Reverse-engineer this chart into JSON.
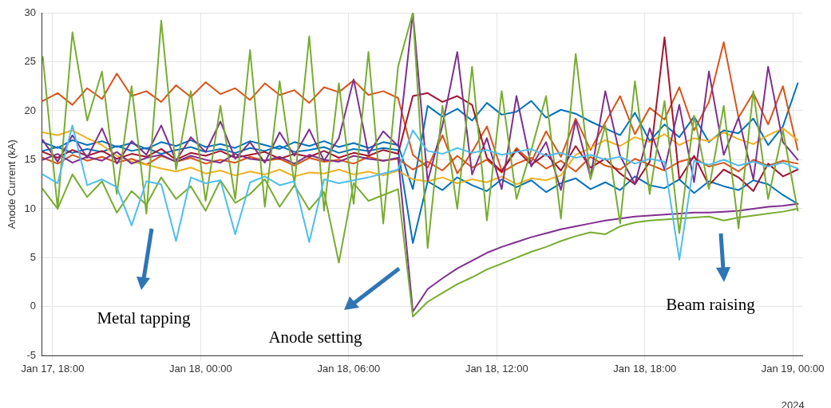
{
  "chart_data": {
    "type": "line",
    "ylabel": "Anode Current (kA)",
    "x": [
      "2024-01-17T17:36",
      "2024-01-17T18:12",
      "2024-01-17T18:48",
      "2024-01-17T19:24",
      "2024-01-17T20:00",
      "2024-01-17T20:36",
      "2024-01-17T21:12",
      "2024-01-17T21:48",
      "2024-01-17T22:24",
      "2024-01-17T23:00",
      "2024-01-17T23:36",
      "2024-01-18T00:12",
      "2024-01-18T00:48",
      "2024-01-18T01:24",
      "2024-01-18T02:00",
      "2024-01-18T02:36",
      "2024-01-18T03:12",
      "2024-01-18T03:48",
      "2024-01-18T04:24",
      "2024-01-18T05:00",
      "2024-01-18T05:36",
      "2024-01-18T06:12",
      "2024-01-18T06:48",
      "2024-01-18T07:24",
      "2024-01-18T08:00",
      "2024-01-18T08:36",
      "2024-01-18T09:12",
      "2024-01-18T09:48",
      "2024-01-18T10:24",
      "2024-01-18T11:00",
      "2024-01-18T11:36",
      "2024-01-18T12:12",
      "2024-01-18T12:48",
      "2024-01-18T13:24",
      "2024-01-18T14:00",
      "2024-01-18T14:36",
      "2024-01-18T15:12",
      "2024-01-18T15:48",
      "2024-01-18T16:24",
      "2024-01-18T17:00",
      "2024-01-18T17:36",
      "2024-01-18T18:12",
      "2024-01-18T18:48",
      "2024-01-18T19:24",
      "2024-01-18T20:00",
      "2024-01-18T20:36",
      "2024-01-18T21:12",
      "2024-01-18T21:48",
      "2024-01-18T22:24",
      "2024-01-18T23:00",
      "2024-01-18T23:36",
      "2024-01-19T00:12"
    ],
    "xlim": [
      "2024-01-17T17:33",
      "2024-01-19T00:23"
    ],
    "xticks": [
      {
        "value": "2024-01-17T18:00",
        "label": "Jan 17, 18:00"
      },
      {
        "value": "2024-01-18T00:00",
        "label": "Jan 18, 00:00"
      },
      {
        "value": "2024-01-18T06:00",
        "label": "Jan 18, 06:00"
      },
      {
        "value": "2024-01-18T12:00",
        "label": "Jan 18, 12:00"
      },
      {
        "value": "2024-01-18T18:00",
        "label": "Jan 18, 18:00"
      },
      {
        "value": "2024-01-19T00:00",
        "label": "Jan 19, 00:00"
      }
    ],
    "ylim": [
      -5,
      30
    ],
    "yticks": [
      -5,
      0,
      5,
      10,
      15,
      20,
      25,
      30
    ],
    "grid": true,
    "legend": false,
    "marker": "none",
    "line_style": "solid",
    "annotations": [
      "Metal tapping",
      "Anode setting",
      "Beam raising",
      "2024"
    ],
    "series": [
      {
        "color": "#0072bd",
        "values": [
          16.8,
          16.2,
          17.0,
          16.5,
          16.9,
          16.3,
          16.7,
          16.1,
          16.8,
          16.4,
          17.0,
          16.3,
          16.6,
          16.2,
          16.9,
          16.5,
          16.1,
          16.8,
          16.4,
          16.9,
          16.3,
          16.7,
          16.2,
          16.8,
          16.5,
          12,
          20.5,
          19.4,
          20.2,
          19.0,
          20.8,
          19.6,
          19.9,
          21.0,
          19.3,
          20.1,
          19.7,
          18.9,
          18.2,
          17.5,
          19.8,
          16.9,
          18.6,
          17.3,
          19.4,
          16.8,
          18.0,
          17.7,
          19.2,
          16.5,
          18.4,
          22.8
        ]
      },
      {
        "color": "#0072bd",
        "values": [
          15.9,
          16.3,
          15.7,
          16.1,
          15.8,
          16.4,
          15.9,
          16.2,
          15.6,
          16.0,
          16.3,
          15.8,
          16.1,
          15.7,
          16.2,
          15.9,
          16.4,
          15.8,
          16.0,
          16.3,
          15.7,
          16.1,
          15.9,
          16.2,
          16.0,
          6.5,
          12.8,
          11.9,
          13.2,
          12.4,
          11.8,
          13.0,
          12.2,
          12.9,
          11.7,
          12.6,
          13.1,
          12.0,
          12.7,
          11.9,
          13.3,
          12.4,
          12.1,
          13.0,
          11.6,
          12.8,
          12.3,
          11.9,
          12.9,
          12.5,
          11.4,
          10.5
        ]
      },
      {
        "color": "#d95319",
        "values": [
          21.0,
          21.8,
          20.6,
          22.3,
          21.2,
          23.8,
          21.5,
          22.0,
          20.9,
          22.6,
          21.4,
          22.9,
          21.7,
          22.3,
          21.1,
          22.8,
          21.6,
          22.1,
          20.8,
          22.4,
          21.9,
          23.1,
          21.6,
          22.0,
          21.3,
          15.5,
          14.2,
          17.5,
          13.6,
          15.8,
          18.4,
          13.9,
          16.2,
          14.8,
          17.9,
          15.3,
          19.2,
          16.0,
          18.8,
          21.5,
          17.6,
          20.3,
          19.1,
          22.4,
          18.0,
          20.9,
          27.0,
          19.3,
          21.8,
          18.6,
          22.5,
          16.0
        ]
      },
      {
        "color": "#d95319",
        "values": [
          15.2,
          14.6,
          15.5,
          14.9,
          15.3,
          14.7,
          15.1,
          14.5,
          15.4,
          14.8,
          15.2,
          14.6,
          15.0,
          14.7,
          15.3,
          14.9,
          15.1,
          14.4,
          15.2,
          14.8,
          15.0,
          14.6,
          15.3,
          14.9,
          15.1,
          14.0,
          14.8,
          13.9,
          15.4,
          14.2,
          15.0,
          13.7,
          14.6,
          15.2,
          14.1,
          14.9,
          13.8,
          15.3,
          14.4,
          14.0,
          15.1,
          14.5,
          13.9,
          14.8,
          15.2,
          14.3,
          14.7,
          13.8,
          15.0,
          14.4,
          14.9,
          14.6
        ]
      },
      {
        "color": "#edb120",
        "values": [
          17.8,
          17.5,
          18.0,
          17.2,
          16.5,
          15.4,
          14.8,
          14.5,
          14.1,
          13.8,
          14.2,
          13.6,
          13.9,
          13.4,
          13.8,
          13.5,
          14.0,
          13.3,
          13.7,
          13.6,
          14.0,
          13.5,
          13.8,
          13.4,
          13.9,
          13.0,
          12.8,
          13.2,
          12.6,
          13.0,
          12.7,
          13.3,
          12.5,
          13.1,
          12.9,
          13.4,
          15.5,
          16.2,
          17.0,
          16.4,
          17.3,
          16.8,
          17.6,
          16.5,
          17.2,
          16.9,
          17.8,
          17.1,
          16.6,
          17.5,
          18.2,
          17.0
        ]
      },
      {
        "color": "#a2142f",
        "values": [
          15.8,
          15.2,
          16.0,
          15.4,
          15.9,
          15.1,
          15.6,
          15.3,
          16.1,
          15.0,
          15.7,
          15.4,
          15.9,
          15.2,
          15.5,
          15.8,
          15.1,
          15.6,
          15.3,
          15.9,
          15.2,
          15.7,
          15.4,
          16.0,
          15.6,
          21.5,
          21.8,
          20.9,
          21.5,
          20.6,
          15.2,
          13.8,
          16.0,
          14.5,
          15.6,
          13.9,
          16.4,
          14.2,
          15.1,
          13.6,
          12.5,
          14.8,
          27.5,
          13.0,
          15.4,
          12.4,
          14.0,
          13.2,
          11.8,
          14.6,
          13.3,
          14.0
        ]
      },
      {
        "color": "#7e2f8e",
        "values": [
          17.0,
          14.8,
          17.5,
          15.2,
          18.2,
          14.6,
          16.9,
          15.5,
          18.5,
          14.9,
          17.3,
          15.8,
          18.9,
          15.1,
          16.8,
          14.7,
          17.8,
          15.4,
          18.1,
          14.9,
          17.2,
          23.2,
          15.6,
          17.9,
          16.4,
          30,
          12.8,
          18.5,
          26.0,
          13.5,
          17.2,
          12.0,
          21.5,
          14.3,
          16.8,
          11.9,
          19.0,
          13.2,
          22.0,
          15.4,
          12.5,
          18.2,
          14.0,
          20.6,
          12.7,
          24.0,
          15.5,
          19.3,
          13.0,
          24.5,
          16.8,
          15.0
        ]
      },
      {
        "color": "#7e2f8e",
        "values": [
          15.0,
          15.6,
          14.7,
          15.3,
          14.9,
          15.8,
          14.6,
          15.2,
          15.5,
          14.8,
          15.4,
          15.0,
          14.7,
          15.6,
          15.1,
          14.9,
          15.3,
          14.6,
          15.5,
          15.0,
          14.8,
          15.4,
          15.1,
          14.9,
          15.2,
          -0.5,
          1.8,
          2.9,
          3.9,
          4.7,
          5.5,
          6.1,
          6.6,
          7.1,
          7.5,
          7.9,
          8.2,
          8.5,
          8.8,
          9.0,
          9.2,
          9.3,
          9.4,
          9.5,
          9.6,
          9.6,
          9.7,
          9.8,
          10.0,
          10.2,
          10.3,
          10.5
        ]
      },
      {
        "color": "#77ac30",
        "values": [
          25.5,
          10.0,
          28.0,
          19.0,
          24.0,
          11.5,
          22.5,
          9.5,
          29.2,
          14.0,
          22.0,
          10.8,
          20.5,
          11.0,
          26.2,
          10.2,
          23.0,
          12.5,
          27.6,
          9.8,
          22.8,
          10.5,
          26.0,
          8.5,
          24.5,
          30,
          6.0,
          20.5,
          10.0,
          24.5,
          8.8,
          22.0,
          11.0,
          16.0,
          21.5,
          9.0,
          25.8,
          13.0,
          18.5,
          8.5,
          23.0,
          11.5,
          21.0,
          7.5,
          19.5,
          12.0,
          20.5,
          8.0,
          22.0,
          11.0,
          18.0,
          9.8
        ]
      },
      {
        "color": "#77ac30",
        "values": [
          12.0,
          10.0,
          13.5,
          11.2,
          12.8,
          9.6,
          11.8,
          10.4,
          13.2,
          11.0,
          12.3,
          9.8,
          12.9,
          10.6,
          11.5,
          13.0,
          10.2,
          12.4,
          9.9,
          11.7,
          4.5,
          12.6,
          10.8,
          11.4,
          12.0,
          -1.0,
          0.5,
          1.4,
          2.3,
          3.0,
          3.8,
          4.4,
          5.0,
          5.6,
          6.1,
          6.7,
          7.2,
          7.6,
          7.4,
          8.2,
          8.6,
          8.8,
          8.9,
          9.0,
          9.1,
          9.2,
          8.8,
          9.1,
          9.3,
          9.5,
          9.7,
          10.0
        ]
      },
      {
        "color": "#4dbeee",
        "values": [
          13.5,
          12.6,
          18.5,
          12.4,
          13.0,
          12.2,
          8.3,
          12.8,
          12.5,
          6.7,
          13.2,
          12.6,
          12.9,
          7.4,
          12.7,
          13.3,
          12.4,
          12.8,
          6.6,
          13.0,
          12.6,
          12.9,
          13.2,
          13.6,
          14.0,
          18,
          15.9,
          15.6,
          16.2,
          15.7,
          16.0,
          15.5,
          15.8,
          16.1,
          15.4,
          15.7,
          15.2,
          15.5,
          15.0,
          15.3,
          14.6,
          15.1,
          14.8,
          4.8,
          14.9,
          14.5,
          15.0,
          14.4,
          14.8,
          14.3,
          14.7,
          14.1
        ]
      }
    ]
  }
}
